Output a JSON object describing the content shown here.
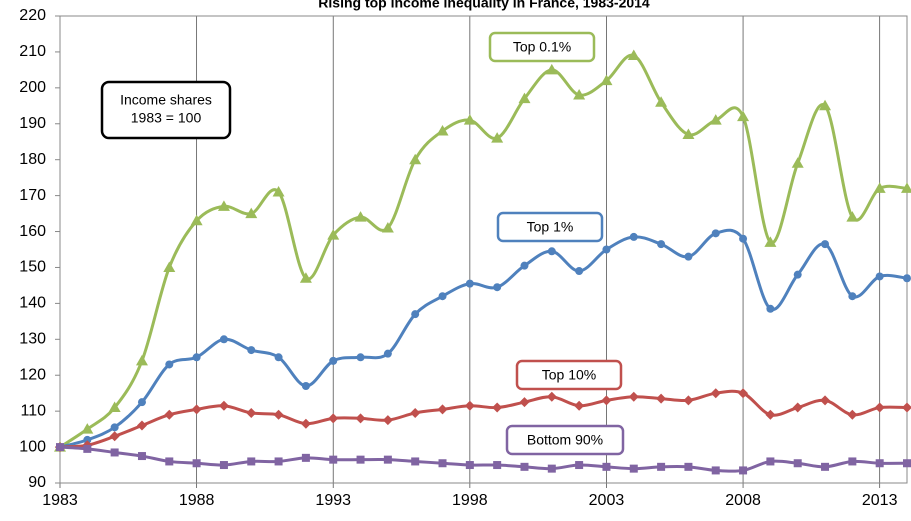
{
  "chart_data": {
    "type": "line",
    "title": "Rising top income inequality in France, 1983-2014",
    "annotation": [
      "Income shares",
      "1983 = 100"
    ],
    "x": [
      1983,
      1984,
      1985,
      1986,
      1987,
      1988,
      1989,
      1990,
      1991,
      1992,
      1993,
      1994,
      1995,
      1996,
      1997,
      1998,
      1999,
      2000,
      2001,
      2002,
      2003,
      2004,
      2005,
      2006,
      2007,
      2008,
      2009,
      2010,
      2011,
      2012,
      2013,
      2014
    ],
    "xlim": [
      1983,
      2014
    ],
    "xticks": [
      1983,
      1988,
      1993,
      1998,
      2003,
      2008,
      2013
    ],
    "ylim": [
      90,
      220
    ],
    "yticks": [
      90,
      100,
      110,
      120,
      130,
      140,
      150,
      160,
      170,
      180,
      190,
      200,
      210,
      220
    ],
    "grid": true,
    "series": [
      {
        "name": "Top 0.1%",
        "color": "#9bbb59",
        "marker": "triangle",
        "values": [
          100,
          105,
          111,
          124,
          150,
          163,
          167,
          165,
          171,
          147,
          159,
          164,
          161,
          180,
          188,
          191,
          186,
          197,
          205,
          198,
          202,
          209,
          196,
          187,
          191,
          192,
          157,
          179,
          195,
          164,
          172,
          172
        ]
      },
      {
        "name": "Top 1%",
        "color": "#4f81bd",
        "marker": "circle",
        "values": [
          100,
          102,
          105.5,
          112.5,
          123,
          125,
          130,
          127,
          125,
          117,
          124,
          125,
          126,
          137,
          142,
          145.5,
          144.5,
          150.5,
          154.5,
          149,
          155,
          158.5,
          156.5,
          153,
          159.5,
          158,
          138.5,
          148,
          156.5,
          142,
          147.5,
          147
        ]
      },
      {
        "name": "Top 10%",
        "color": "#c0504d",
        "marker": "diamond",
        "values": [
          100,
          100.5,
          103,
          106,
          109,
          110.5,
          111.5,
          109.5,
          109,
          106.5,
          108,
          108,
          107.5,
          109.5,
          110.5,
          111.5,
          111,
          112.5,
          114,
          111.5,
          113,
          114,
          113.5,
          113,
          115,
          115,
          109,
          111,
          113,
          109,
          111,
          111
        ]
      },
      {
        "name": "Bottom 90%",
        "color": "#8064a2",
        "marker": "square",
        "values": [
          100,
          99.5,
          98.5,
          97.5,
          96,
          95.5,
          95,
          96,
          96,
          97,
          96.5,
          96.5,
          96.5,
          96,
          95.5,
          95,
          95,
          94.5,
          94,
          95,
          94.5,
          94,
          94.5,
          94.5,
          93.5,
          93.5,
          96,
          95.5,
          94.5,
          96,
          95.5,
          95.5
        ]
      }
    ]
  }
}
